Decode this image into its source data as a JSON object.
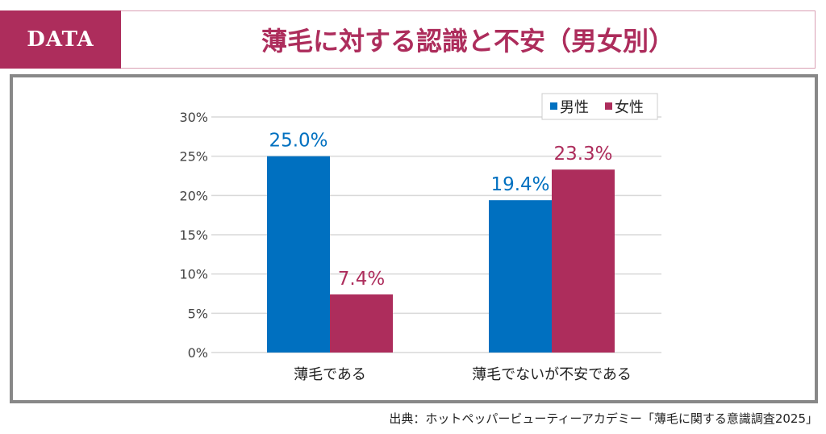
{
  "header": {
    "tag": "DATA",
    "title": "薄毛に対する認識と不安（男女別）"
  },
  "source": "出典：ホットペッパービューティーアカデミー「薄毛に関する意識調査2025」",
  "chart_data": {
    "type": "bar",
    "categories": [
      "薄毛である",
      "薄毛でないが不安である"
    ],
    "series": [
      {
        "name": "男性",
        "values": [
          25.0,
          19.4
        ],
        "color": "#0070c0",
        "labels": [
          "25.0%",
          "19.4%"
        ]
      },
      {
        "name": "女性",
        "values": [
          7.4,
          23.3
        ],
        "color": "#ad2d5c",
        "labels": [
          "7.4%",
          "23.3%"
        ]
      }
    ],
    "ylim": [
      0,
      30
    ],
    "yticks": [
      "0%",
      "5%",
      "10%",
      "15%",
      "20%",
      "25%",
      "30%"
    ],
    "grid": true,
    "legend": "top-right"
  }
}
